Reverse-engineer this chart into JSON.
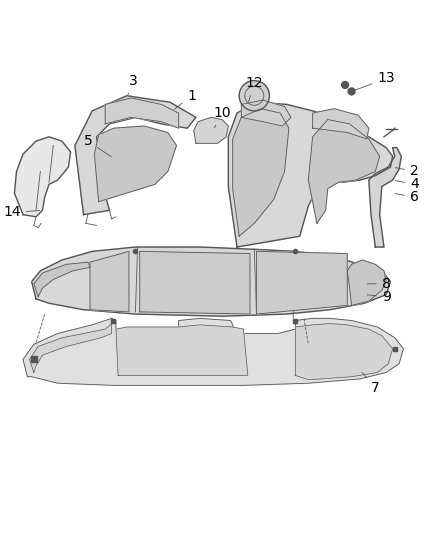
{
  "background_color": "#ffffff",
  "line_color": "#555555",
  "label_color": "#000000",
  "label_fontsize": 10,
  "fig_width": 4.38,
  "fig_height": 5.33,
  "dpi": 100
}
